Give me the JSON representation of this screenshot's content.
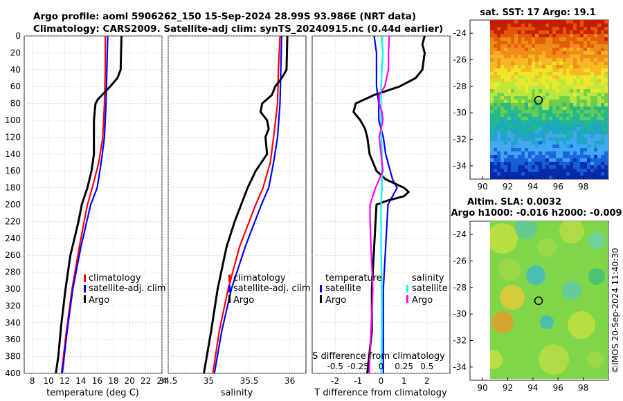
{
  "header": {
    "line1": "Argo profile: aoml 5906262_150 15-Sep-2024 28.99S 93.986E (NRT data)",
    "line2": "Climatology: CARS2009. Satellite-adj clim: synTS_20240915.nc (0.44d earlier)"
  },
  "depth_ticks": [
    "0",
    "20",
    "40",
    "60",
    "80",
    "100",
    "120",
    "140",
    "160",
    "180",
    "200",
    "220",
    "240",
    "260",
    "280",
    "300",
    "320",
    "340",
    "360",
    "380",
    "400"
  ],
  "colors": {
    "clim": "#ff0000",
    "sat": "#0000ff",
    "argo": "#000000",
    "sat_s": "#00ffff",
    "argo_s": "#ff00ff"
  },
  "chart_data": [
    {
      "type": "line",
      "panel": "temperature",
      "xlabel": "temperature (deg C)",
      "xlim": [
        7,
        24
      ],
      "ylim": [
        400,
        0
      ],
      "xticks": [
        "8",
        "10",
        "12",
        "14",
        "16",
        "18",
        "20",
        "22",
        "24"
      ],
      "legend": [
        "climatology",
        "satellite-adj. clim",
        "Argo"
      ],
      "series": [
        {
          "name": "climatology",
          "depth": [
            0,
            40,
            80,
            120,
            150,
            180,
            200,
            250,
            300,
            350,
            400
          ],
          "values": [
            17.0,
            17.0,
            16.9,
            16.7,
            16.2,
            15.4,
            14.8,
            13.8,
            12.9,
            12.2,
            11.6
          ]
        },
        {
          "name": "satellite-adj. clim",
          "depth": [
            0,
            40,
            80,
            120,
            150,
            180,
            200,
            250,
            300,
            350,
            400
          ],
          "values": [
            17.3,
            17.2,
            17.1,
            16.9,
            16.5,
            16.0,
            15.2,
            14.0,
            13.0,
            12.3,
            11.7
          ]
        },
        {
          "name": "Argo",
          "depth": [
            0,
            40,
            50,
            60,
            70,
            75,
            80,
            90,
            100,
            120,
            140,
            160,
            180,
            200,
            220,
            240,
            260,
            300,
            340,
            380,
            400
          ],
          "values": [
            19.0,
            18.9,
            18.5,
            17.6,
            16.6,
            16.1,
            15.8,
            15.7,
            15.6,
            15.6,
            15.6,
            15.3,
            14.8,
            14.1,
            13.7,
            13.2,
            12.7,
            12.1,
            11.6,
            11.2,
            10.9
          ]
        }
      ]
    },
    {
      "type": "line",
      "panel": "salinity",
      "xlabel": "salinity",
      "xlim": [
        34.5,
        36.2
      ],
      "ylim": [
        400,
        0
      ],
      "xticks": [
        "34.5",
        "35",
        "35.5",
        "36"
      ],
      "legend": [
        "climatology",
        "satellite-adj. clim",
        "Argo"
      ],
      "series": [
        {
          "name": "climatology",
          "depth": [
            0,
            40,
            80,
            120,
            150,
            180,
            200,
            250,
            300,
            350,
            400
          ],
          "values": [
            35.88,
            35.86,
            35.85,
            35.8,
            35.76,
            35.67,
            35.58,
            35.38,
            35.24,
            35.13,
            35.05
          ]
        },
        {
          "name": "satellite-adj. clim",
          "depth": [
            0,
            40,
            80,
            120,
            150,
            180,
            200,
            250,
            300,
            350,
            400
          ],
          "values": [
            35.9,
            35.89,
            35.88,
            35.85,
            35.8,
            35.74,
            35.65,
            35.45,
            35.28,
            35.16,
            35.07
          ]
        },
        {
          "name": "Argo",
          "depth": [
            0,
            40,
            50,
            60,
            70,
            75,
            80,
            90,
            100,
            110,
            120,
            140,
            160,
            180,
            200,
            220,
            250,
            300,
            350,
            400
          ],
          "values": [
            35.97,
            35.96,
            35.9,
            35.82,
            35.78,
            35.72,
            35.66,
            35.64,
            35.72,
            35.74,
            35.7,
            35.72,
            35.58,
            35.48,
            35.4,
            35.32,
            35.22,
            35.11,
            35.03,
            34.94
          ]
        }
      ]
    },
    {
      "type": "line",
      "panel": "difference",
      "xlabel": "T difference from climatology",
      "xlabel_top": "S difference from climatology",
      "xlim": [
        -3,
        3
      ],
      "ylim": [
        400,
        0
      ],
      "xticks": [
        "-2",
        "-1",
        "0",
        "1",
        "2"
      ],
      "xticks_top": [
        "-0.5",
        "-0.25",
        "0",
        "0.25",
        "0.5"
      ],
      "legend": {
        "temperature": [
          "satellite",
          "Argo"
        ],
        "salinity": [
          "satellite",
          "Argo"
        ]
      },
      "series": [
        {
          "name": "temperature satellite",
          "depth": [
            0,
            20,
            40,
            60,
            80,
            100,
            120,
            140,
            160,
            170,
            180,
            190,
            200,
            250,
            300,
            350,
            400
          ],
          "values": [
            -0.3,
            -0.2,
            -0.2,
            -0.2,
            -0.1,
            -0.1,
            0.1,
            0.2,
            0.4,
            0.5,
            0.7,
            0.5,
            0.3,
            0.2,
            0.1,
            0.1,
            0.1
          ]
        },
        {
          "name": "temperature Argo",
          "depth": [
            0,
            10,
            20,
            40,
            50,
            60,
            70,
            80,
            90,
            100,
            110,
            120,
            140,
            160,
            170,
            180,
            185,
            190,
            195,
            200,
            250,
            300,
            350,
            400
          ],
          "values": [
            1.9,
            1.8,
            1.9,
            1.8,
            1.5,
            0.8,
            -0.3,
            -1.1,
            -1.2,
            -0.9,
            -0.7,
            -0.6,
            -0.5,
            -0.2,
            0.2,
            1.0,
            1.2,
            1.0,
            0.3,
            -0.2,
            -0.3,
            -0.4,
            -0.4,
            -0.6
          ]
        },
        {
          "name": "salinity satellite",
          "depth": [
            0,
            20,
            40,
            60,
            80,
            100,
            140,
            180,
            200,
            250,
            300,
            350,
            400
          ],
          "values": [
            0.01,
            0.02,
            0.01,
            0.0,
            0.0,
            0.0,
            0.01,
            0.01,
            0.0,
            0.0,
            0.01,
            0.01,
            0.0
          ]
        },
        {
          "name": "salinity Argo",
          "depth": [
            0,
            20,
            40,
            60,
            70,
            80,
            90,
            100,
            120,
            140,
            160,
            180,
            200,
            220,
            250,
            300,
            350,
            400
          ],
          "values": [
            0.09,
            0.08,
            0.08,
            0.04,
            -0.02,
            -0.02,
            0.01,
            0.02,
            -0.02,
            0.0,
            0.02,
            -0.06,
            -0.12,
            -0.12,
            -0.11,
            -0.09,
            -0.11,
            -0.13
          ]
        }
      ]
    },
    {
      "type": "heatmap",
      "panel": "sst_map",
      "title": "sat. SST: 17 Argo: 19.1",
      "xlim": [
        89,
        100
      ],
      "ylim": [
        -35,
        -23
      ],
      "xticks": [
        "90",
        "92",
        "94",
        "96",
        "98"
      ],
      "yticks": [
        "-24",
        "-26",
        "-28",
        "-30",
        "-32",
        "-34"
      ],
      "marker": {
        "lon": 93.986,
        "lat": -28.99
      }
    },
    {
      "type": "heatmap",
      "panel": "sla_map",
      "title": "Altim. SLA: 0.0032",
      "subtitle": "Argo h1000: -0.016 h2000: -0.009",
      "xlim": [
        89,
        100
      ],
      "ylim": [
        -35,
        -23
      ],
      "xticks": [
        "90",
        "92",
        "94",
        "96",
        "98"
      ],
      "yticks": [
        "-24",
        "-26",
        "-28",
        "-30",
        "-32",
        "-34"
      ],
      "marker": {
        "lon": 93.986,
        "lat": -28.99
      }
    }
  ],
  "watermark": "©IMOS 20-Sep-2024 11:40:30"
}
